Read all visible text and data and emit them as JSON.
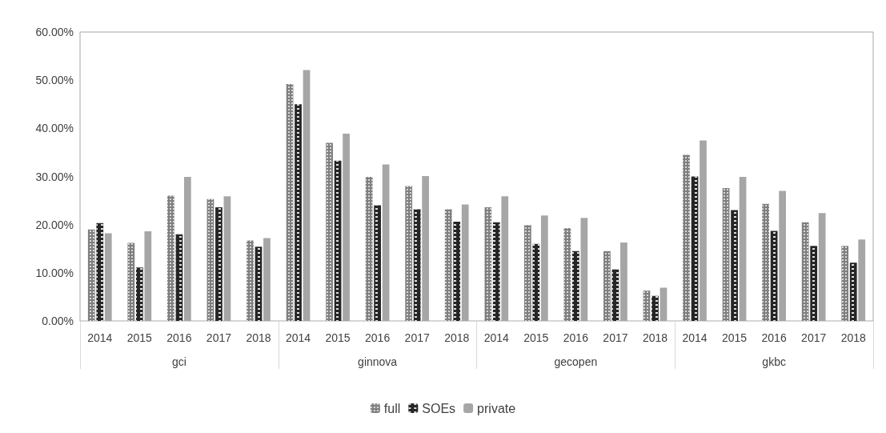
{
  "chart_data": {
    "type": "bar",
    "categories": [
      "2014",
      "2015",
      "2016",
      "2017",
      "2018",
      "2014",
      "2015",
      "2016",
      "2017",
      "2018",
      "2014",
      "2015",
      "2016",
      "2017",
      "2018",
      "2014",
      "2015",
      "2016",
      "2017",
      "2018"
    ],
    "annotations": [
      "gci",
      "ginnova",
      "gecopen",
      "gkbc"
    ],
    "series": [
      {
        "name": "full",
        "color": "#7f7f7f",
        "values": [
          19.0,
          16.2,
          26.0,
          25.3,
          16.7,
          49.2,
          37.0,
          29.9,
          28.0,
          23.2,
          23.6,
          19.9,
          19.3,
          14.5,
          6.3,
          34.5,
          27.6,
          24.3,
          20.5,
          15.6
        ]
      },
      {
        "name": "SOEs",
        "color": "#262626",
        "values": [
          20.3,
          11.1,
          18.0,
          23.6,
          15.4,
          45.0,
          33.3,
          24.0,
          23.2,
          20.6,
          20.5,
          16.0,
          14.5,
          10.7,
          5.2,
          30.0,
          23.0,
          18.7,
          15.6,
          12.1
        ]
      },
      {
        "name": "private",
        "color": "#a6a6a6",
        "values": [
          18.2,
          18.6,
          29.9,
          25.9,
          17.2,
          52.1,
          38.9,
          32.5,
          30.1,
          24.2,
          25.9,
          21.9,
          21.4,
          16.3,
          6.9,
          37.5,
          29.9,
          27.0,
          22.4,
          16.9
        ]
      }
    ],
    "ylim": [
      0,
      60
    ],
    "yticks": [
      {
        "value": 0,
        "label": "0.00%"
      },
      {
        "value": 10,
        "label": "10.00%"
      },
      {
        "value": 20,
        "label": "20.00%"
      },
      {
        "value": 30,
        "label": "30.00%"
      },
      {
        "value": 40,
        "label": "40.00%"
      },
      {
        "value": 50,
        "label": "50.00%"
      },
      {
        "value": 60,
        "label": "60.00%"
      }
    ],
    "grid": false,
    "legend": "bottom"
  }
}
